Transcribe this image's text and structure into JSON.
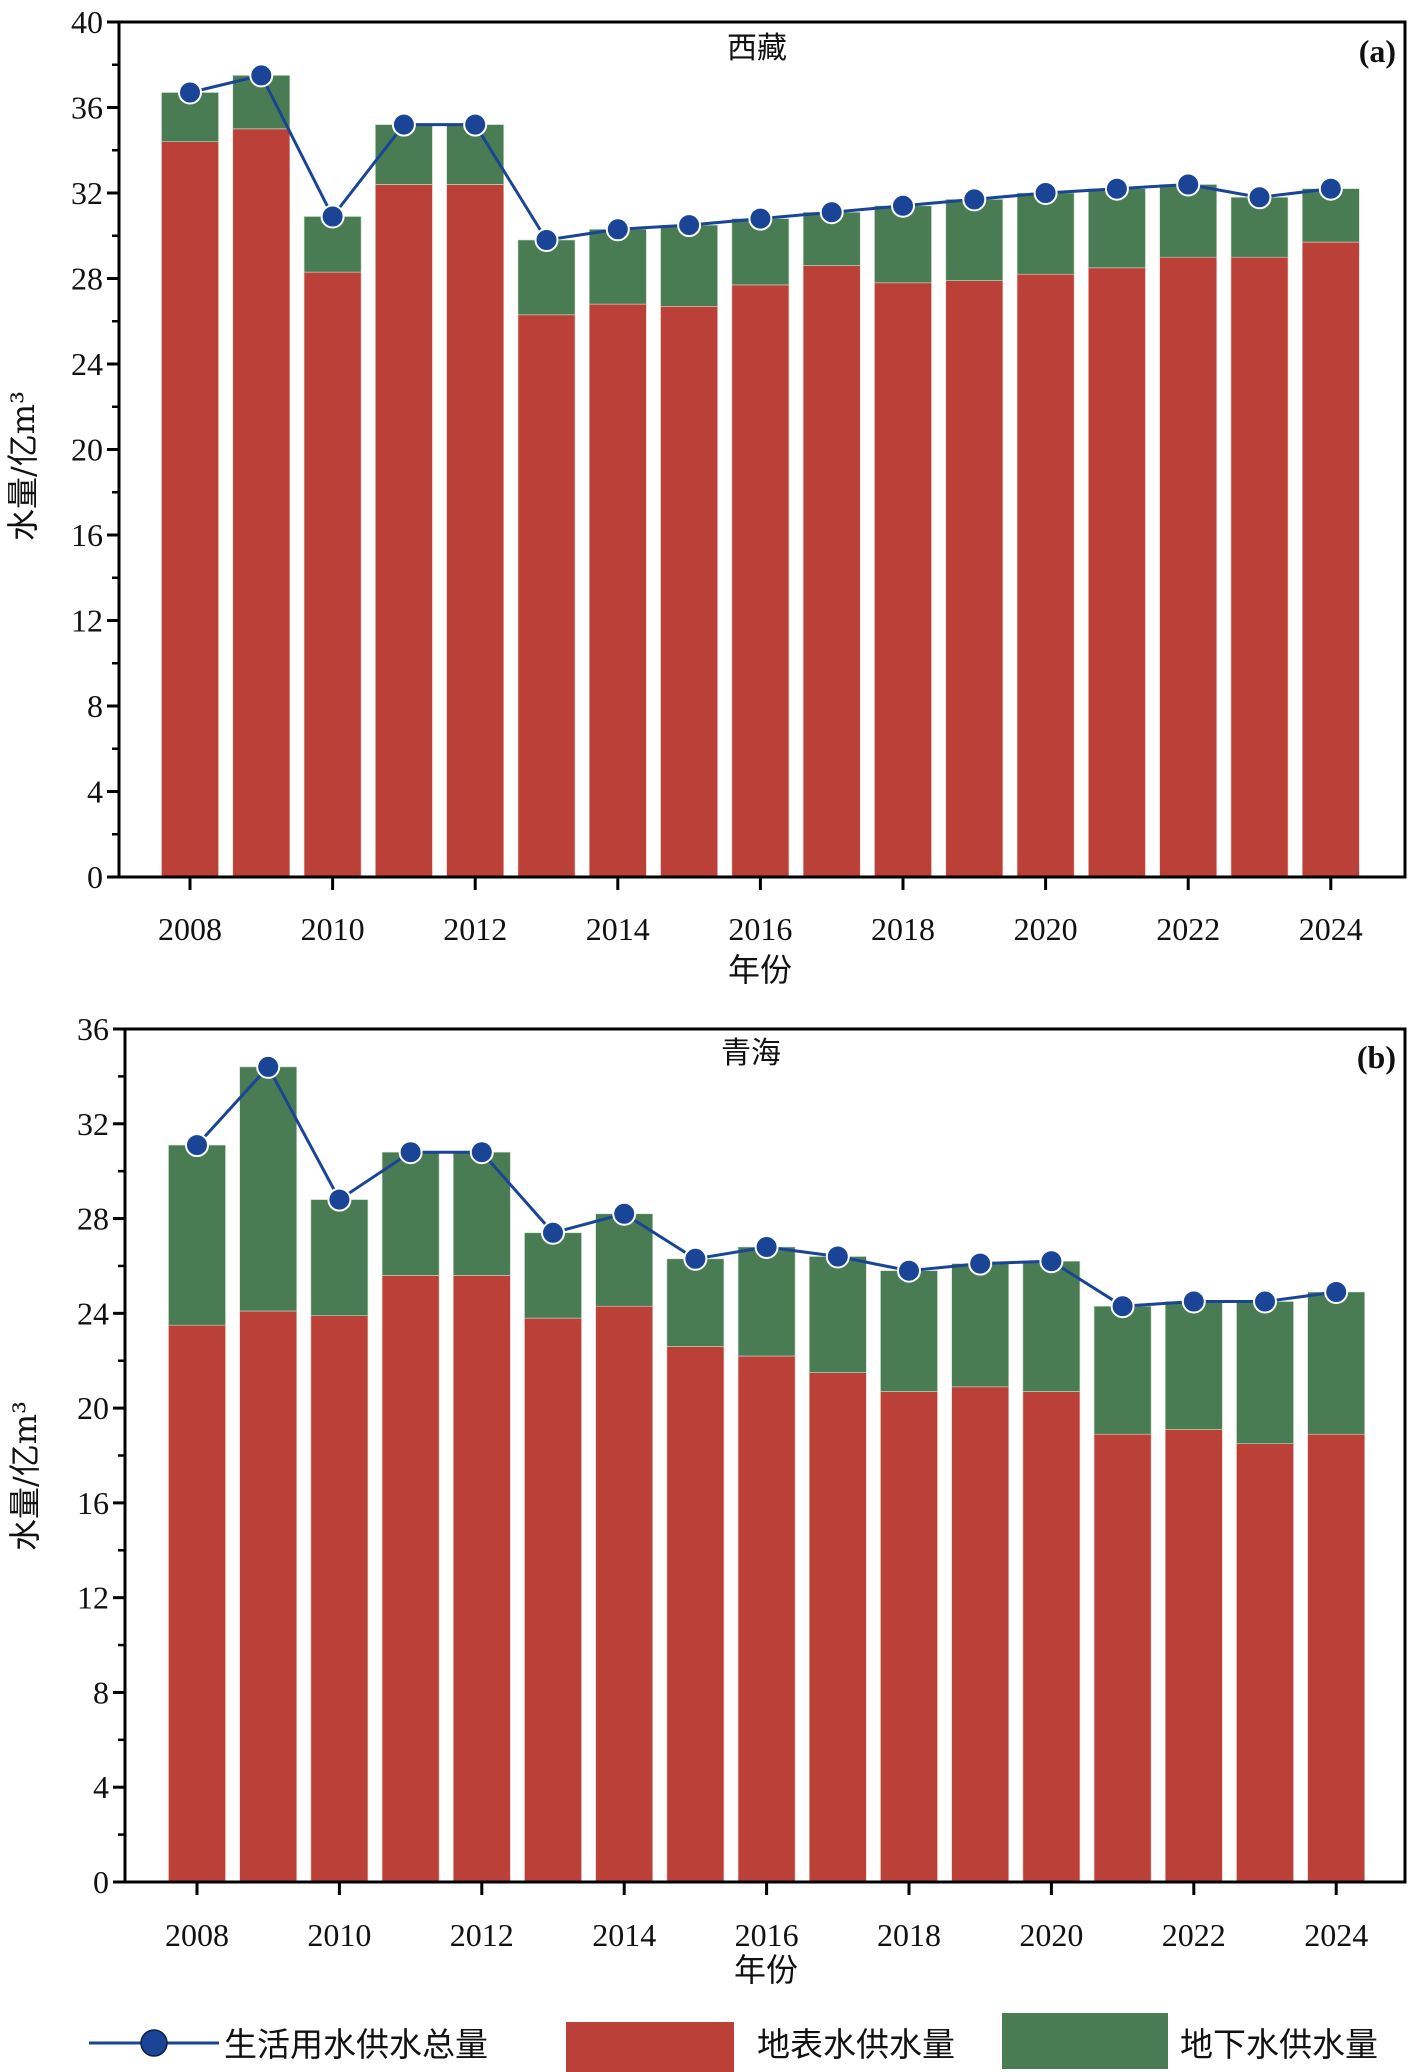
{
  "chart_data": [
    {
      "type": "bar",
      "stacked": true,
      "panel_label": "(a)",
      "title": "西藏",
      "xlabel": "年份",
      "ylabel": "水量/亿m³",
      "ylim": [
        0,
        40
      ],
      "yticks": [
        0,
        4,
        8,
        12,
        16,
        20,
        24,
        28,
        32,
        36,
        40
      ],
      "xticks": [
        2008,
        2010,
        2012,
        2014,
        2016,
        2018,
        2020,
        2022,
        2024
      ],
      "categories": [
        2008,
        2009,
        2010,
        2011,
        2012,
        2013,
        2014,
        2015,
        2016,
        2017,
        2018,
        2019,
        2020,
        2021,
        2022,
        2023,
        2024
      ],
      "series": [
        {
          "name": "地表水供水量",
          "kind": "bar",
          "values": [
            34.4,
            35.0,
            28.3,
            32.4,
            32.4,
            26.3,
            26.8,
            26.7,
            27.7,
            28.6,
            27.8,
            27.9,
            28.2,
            28.5,
            29.0,
            29.0,
            29.7
          ]
        },
        {
          "name": "地下水供水量",
          "kind": "bar",
          "values": [
            2.3,
            2.5,
            2.6,
            2.8,
            2.8,
            3.5,
            3.5,
            3.8,
            3.1,
            2.5,
            3.6,
            3.8,
            3.8,
            3.7,
            3.4,
            2.8,
            2.5
          ]
        },
        {
          "name": "生活用水供水总量",
          "kind": "line",
          "values": [
            36.7,
            37.5,
            30.9,
            35.2,
            35.2,
            29.8,
            30.3,
            30.5,
            30.8,
            31.1,
            31.4,
            31.7,
            32.0,
            32.2,
            32.4,
            31.8,
            32.2
          ]
        }
      ]
    },
    {
      "type": "bar",
      "stacked": true,
      "panel_label": "(b)",
      "title": "青海",
      "xlabel": "年份",
      "ylabel": "水量/亿m³",
      "ylim": [
        0,
        36
      ],
      "yticks": [
        0,
        4,
        8,
        12,
        16,
        20,
        24,
        28,
        32,
        36
      ],
      "xticks": [
        2008,
        2010,
        2012,
        2014,
        2016,
        2018,
        2020,
        2022,
        2024
      ],
      "categories": [
        2008,
        2009,
        2010,
        2011,
        2012,
        2013,
        2014,
        2015,
        2016,
        2017,
        2018,
        2019,
        2020,
        2021,
        2022,
        2023,
        2024
      ],
      "series": [
        {
          "name": "地表水供水量",
          "kind": "bar",
          "values": [
            23.5,
            24.1,
            23.9,
            25.6,
            25.6,
            23.8,
            24.3,
            22.6,
            22.2,
            21.5,
            20.7,
            20.9,
            20.7,
            18.9,
            19.1,
            18.5,
            18.9
          ]
        },
        {
          "name": "地下水供水量",
          "kind": "bar",
          "values": [
            7.6,
            10.3,
            4.9,
            5.2,
            5.2,
            3.6,
            3.9,
            3.7,
            4.6,
            4.9,
            5.1,
            5.2,
            5.5,
            5.4,
            5.4,
            6.0,
            6.0
          ]
        },
        {
          "name": "生活用水供水总量",
          "kind": "line",
          "values": [
            31.1,
            34.4,
            28.8,
            30.8,
            30.8,
            27.4,
            28.2,
            26.3,
            26.8,
            26.4,
            25.8,
            26.1,
            26.2,
            24.3,
            24.5,
            24.5,
            24.9
          ]
        }
      ]
    }
  ],
  "legend": {
    "position": "bottom",
    "items": [
      {
        "label": "生活用水供水总量",
        "marker": "line-circle"
      },
      {
        "label": "地表水供水量",
        "marker": "patch"
      },
      {
        "label": "地下水供水量",
        "marker": "patch"
      }
    ]
  },
  "colors": {
    "surface": "#bb4138",
    "ground": "#4a7c54",
    "line": "#1a4597",
    "axis": "#000000"
  }
}
